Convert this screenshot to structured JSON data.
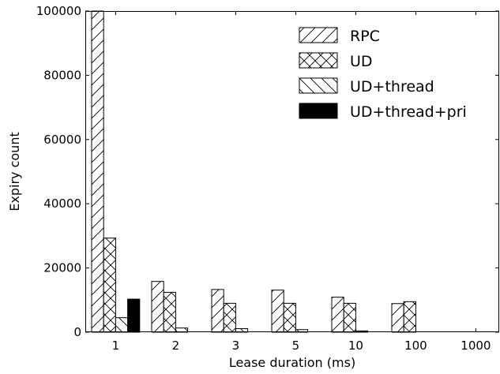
{
  "chart_data": {
    "type": "bar",
    "xlabel": "Lease duration (ms)",
    "ylabel": "Expiry count",
    "categories": [
      "1",
      "2",
      "3",
      "5",
      "10",
      "100",
      "1000"
    ],
    "ylim": [
      0,
      100000
    ],
    "yticks": [
      0,
      20000,
      40000,
      60000,
      80000,
      100000
    ],
    "ytick_labels": [
      "0",
      "20000",
      "40000",
      "60000",
      "80000",
      "100000"
    ],
    "grid": false,
    "legend_position": "top-right",
    "series": [
      {
        "name": "RPC",
        "pattern": "forward-diagonal-hatch",
        "values": [
          100000,
          15800,
          13300,
          13100,
          10900,
          8900,
          0
        ]
      },
      {
        "name": "UD",
        "pattern": "cross-hatch",
        "values": [
          29300,
          12400,
          9000,
          9000,
          9000,
          9500,
          0
        ]
      },
      {
        "name": "UD+thread",
        "pattern": "back-diagonal-hatch",
        "values": [
          4500,
          1300,
          1100,
          800,
          400,
          0,
          0
        ]
      },
      {
        "name": "UD+thread+pri",
        "pattern": "solid-black",
        "values": [
          10300,
          0,
          0,
          0,
          0,
          0,
          0
        ]
      }
    ]
  }
}
